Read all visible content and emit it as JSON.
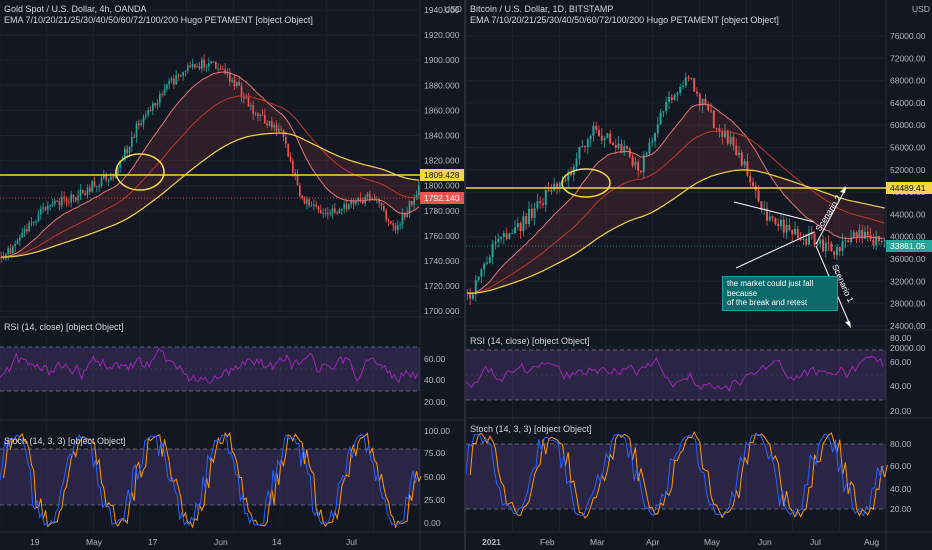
{
  "left_chart": {
    "symbol_line": "Gold Spot / U.S. Dollar, 4h, OANDA",
    "ema_line": "EMA 7/10/20/21/25/30/40/50/60/72/100/200 Hugo PETAMENT [object Object]",
    "currency": "USD",
    "price_ticks": [
      "1940.000",
      "1920.000",
      "1900.000",
      "1880.000",
      "1860.000",
      "1840.000",
      "1820.000",
      "1800.000",
      "1780.000",
      "1760.000",
      "1740.000",
      "1720.000",
      "1700.000"
    ],
    "hline_label": "1809.428",
    "price_label": "1792.140",
    "rsi_legend": "RSI (14, close) [object Object]",
    "rsi_ticks": [
      "60.00",
      "40.00",
      "20.00"
    ],
    "stoch_legend": "Stoch (14, 3, 3) [object Object]",
    "stoch_ticks": [
      "100.00",
      "75.00",
      "50.00",
      "25.00",
      "0.00"
    ],
    "time_ticks": [
      "19",
      "May",
      "17",
      "Jun",
      "14",
      "Jul"
    ],
    "colors": {
      "hline": "#f5d547",
      "price": "#ef5350"
    }
  },
  "right_chart": {
    "symbol_line": "Bitcoin / U.S. Dollar, 1D, BITSTAMP",
    "ema_line": "EMA 7/10/20/21/25/30/40/50/60/72/100/200 Hugo PETAMENT [object Object]",
    "currency": "USD",
    "price_ticks": [
      "76000.00",
      "72000.00",
      "68000.00",
      "64000.00",
      "60000.00",
      "56000.00",
      "52000.00",
      "48000.00",
      "44000.00",
      "40000.00",
      "36000.00",
      "32000.00",
      "28000.00",
      "24000.00",
      "20000.00"
    ],
    "hline_label": "44489.41",
    "price_label": "33881.05",
    "annotation": [
      "the market could just fall",
      "because",
      "of the break and retest"
    ],
    "scenario_2": "Scenario 2",
    "scenario_1": "Scenario 1",
    "rsi_legend": "RSI (14, close) [object Object]",
    "rsi_ticks": [
      "80.00",
      "60.00",
      "40.00",
      "20.00"
    ],
    "stoch_legend": "Stoch (14, 3, 3) [object Object]",
    "stoch_ticks": [
      "80.00",
      "60.00",
      "40.00",
      "20.00"
    ],
    "time_ticks": [
      "2021",
      "Feb",
      "Mar",
      "Apr",
      "May",
      "Jun",
      "Jul",
      "Aug"
    ],
    "colors": {
      "hline": "#f5d547",
      "price": "#26a69a"
    }
  }
}
